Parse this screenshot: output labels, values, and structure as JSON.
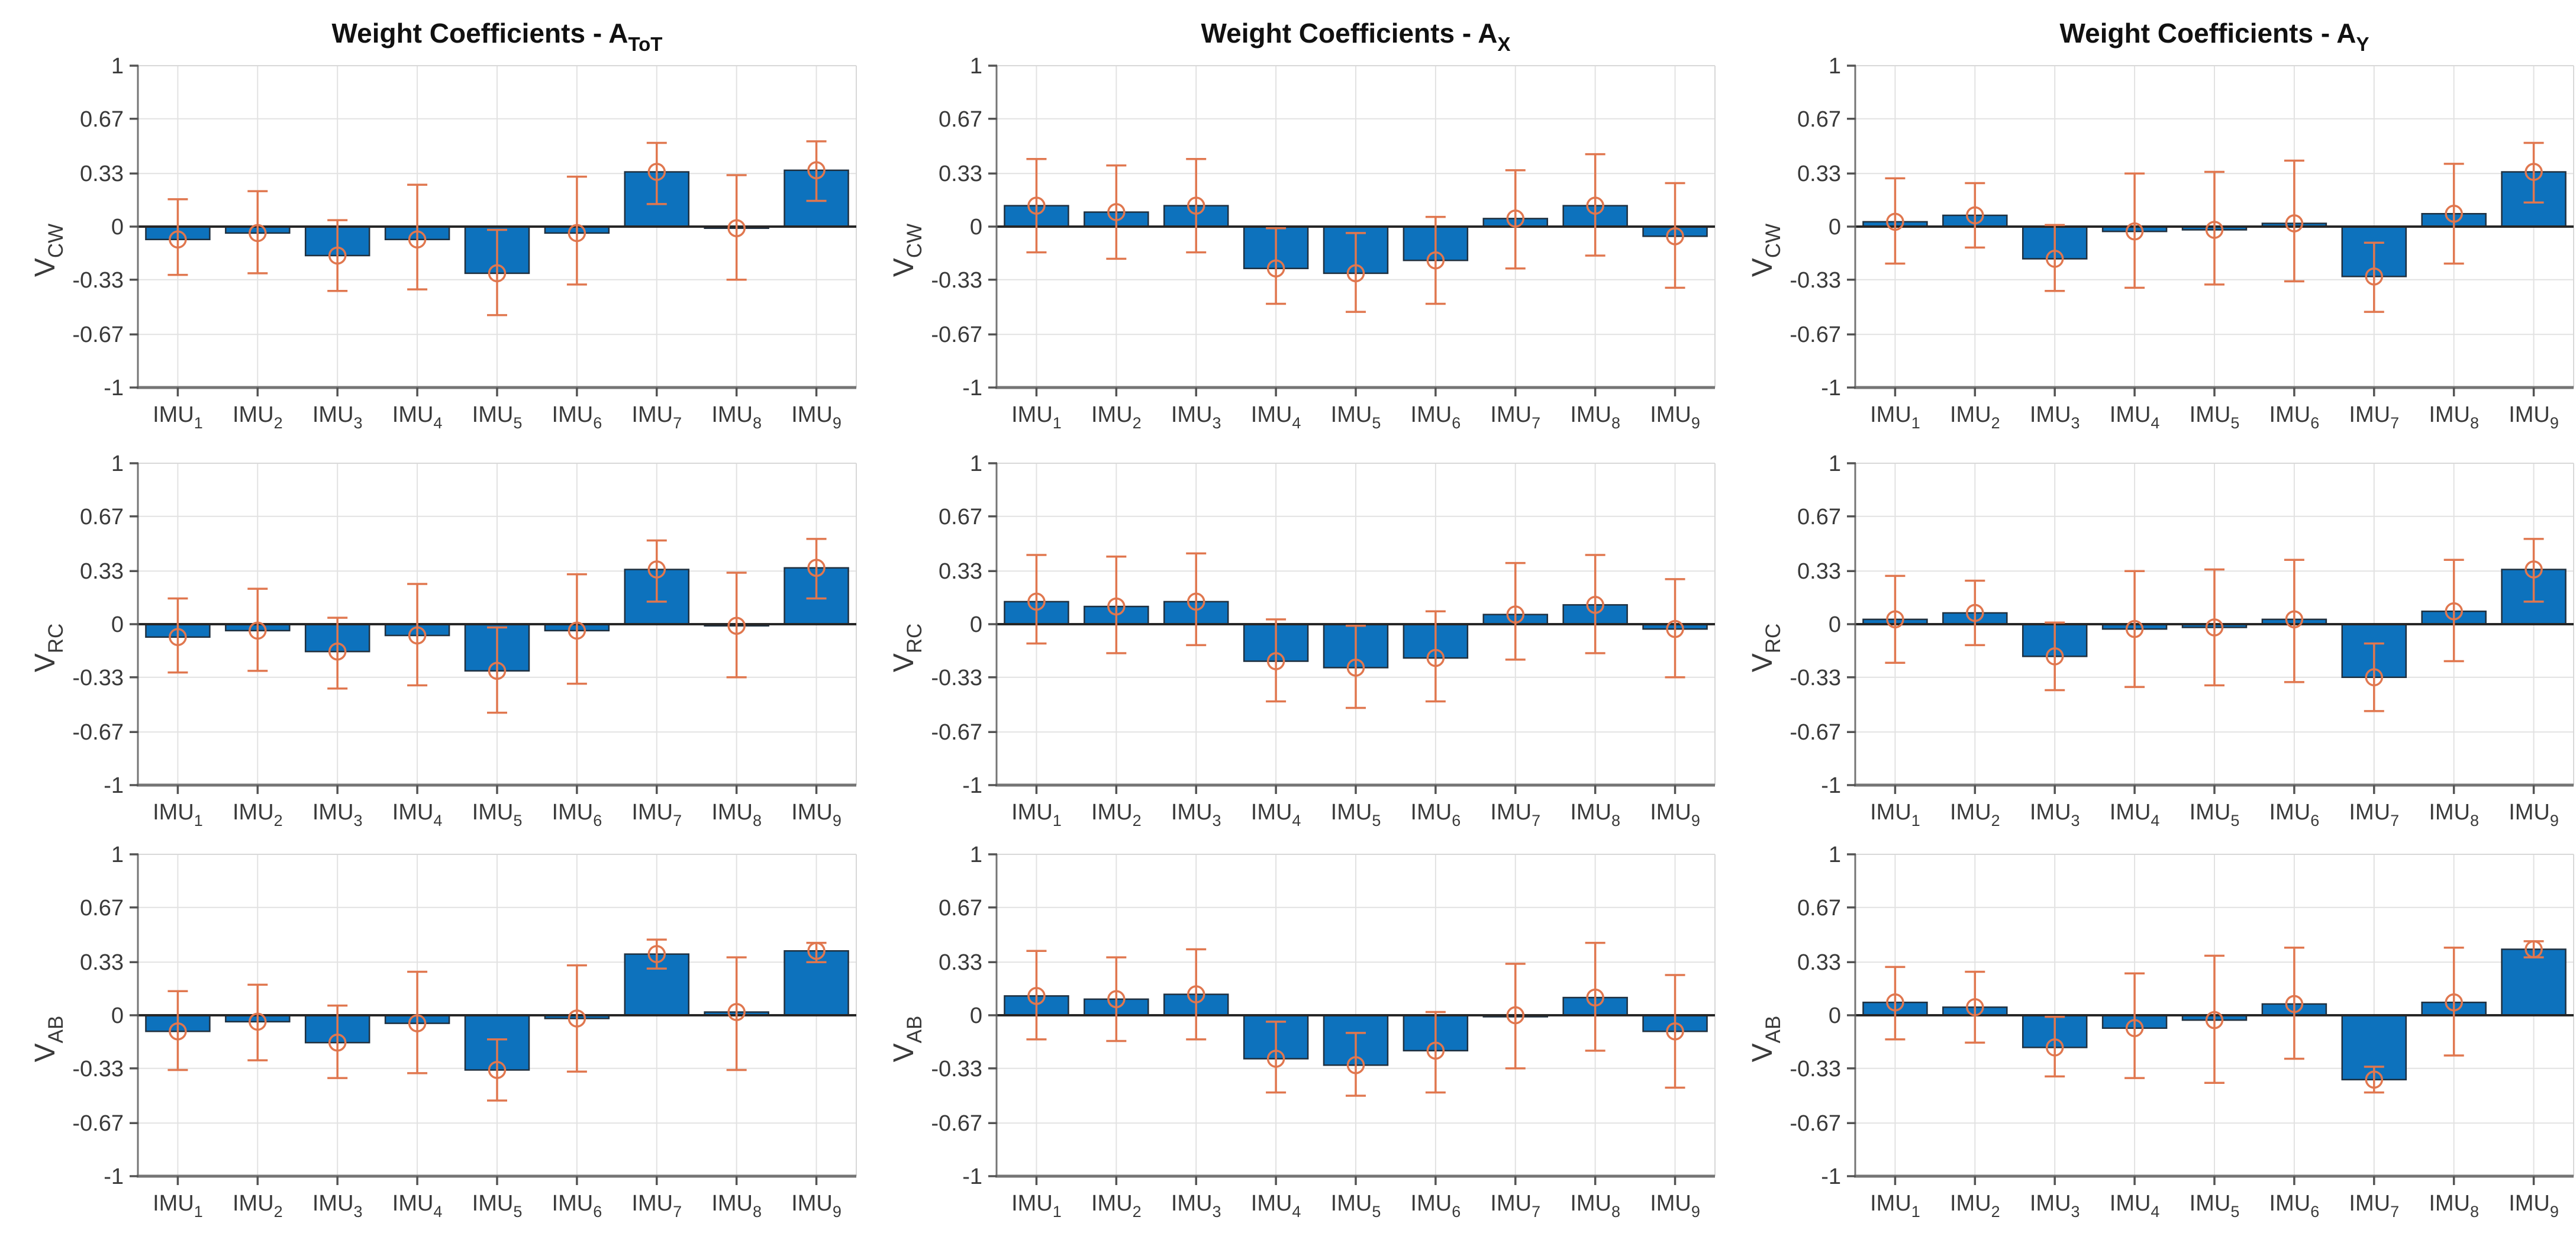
{
  "figure": {
    "column_titles": [
      "Weight Coefficients - A_ToT",
      "Weight Coefficients - A_X",
      "Weight Coefficients - A_Y"
    ],
    "row_ylabels": [
      "V_CW",
      "V_RC",
      "V_AB"
    ]
  },
  "axis": {
    "ylim": [
      -1,
      1
    ],
    "yticks": [
      1,
      0.67,
      0.33,
      0,
      -0.33,
      -0.67,
      -1
    ],
    "ytick_labels": [
      "1",
      "0.67",
      "0.33",
      "0",
      "-0.33",
      "-0.67",
      "-1"
    ],
    "categories": [
      "IMU_1",
      "IMU_2",
      "IMU_3",
      "IMU_4",
      "IMU_5",
      "IMU_6",
      "IMU_7",
      "IMU_8",
      "IMU_9"
    ],
    "grid": true
  },
  "colors": {
    "bar_fill": "#0d72bd",
    "bar_edge": "#20303f",
    "error_bar": "#e0774f",
    "grid_line": "#e2e2e2",
    "axis_line": "#757575",
    "zero_line": "#262626",
    "tick_text": "#3a3a3a",
    "title_text": "#111111",
    "background": "#ffffff"
  },
  "chart_data": [
    {
      "type": "bar",
      "id": "vcw-atot",
      "row": 0,
      "col": 0,
      "title": "Weight Coefficients - A_ToT",
      "ylabel": "V_CW",
      "values": [
        -0.08,
        -0.04,
        -0.18,
        -0.08,
        -0.29,
        -0.04,
        0.34,
        -0.01,
        0.35
      ],
      "err_low": [
        -0.3,
        -0.29,
        -0.4,
        -0.39,
        -0.55,
        -0.36,
        0.14,
        -0.33,
        0.16
      ],
      "err_high": [
        0.17,
        0.22,
        0.04,
        0.26,
        -0.02,
        0.31,
        0.52,
        0.32,
        0.53
      ]
    },
    {
      "type": "bar",
      "id": "vcw-ax",
      "row": 0,
      "col": 1,
      "title": "Weight Coefficients - A_X",
      "ylabel": "V_CW",
      "values": [
        0.13,
        0.09,
        0.13,
        -0.26,
        -0.29,
        -0.21,
        0.05,
        0.13,
        -0.06
      ],
      "err_low": [
        -0.16,
        -0.2,
        -0.16,
        -0.48,
        -0.53,
        -0.48,
        -0.26,
        -0.18,
        -0.38
      ],
      "err_high": [
        0.42,
        0.38,
        0.42,
        -0.01,
        -0.04,
        0.06,
        0.35,
        0.45,
        0.27
      ]
    },
    {
      "type": "bar",
      "id": "vcw-ay",
      "row": 0,
      "col": 2,
      "title": "Weight Coefficients - A_Y",
      "ylabel": "V_CW",
      "values": [
        0.03,
        0.07,
        -0.2,
        -0.03,
        -0.02,
        0.02,
        -0.31,
        0.08,
        0.34
      ],
      "err_low": [
        -0.23,
        -0.13,
        -0.4,
        -0.38,
        -0.36,
        -0.34,
        -0.53,
        -0.23,
        0.15
      ],
      "err_high": [
        0.3,
        0.27,
        0.01,
        0.33,
        0.34,
        0.41,
        -0.1,
        0.39,
        0.52
      ]
    },
    {
      "type": "bar",
      "id": "vrc-atot",
      "row": 1,
      "col": 0,
      "title": "Weight Coefficients - A_ToT",
      "ylabel": "V_RC",
      "values": [
        -0.08,
        -0.04,
        -0.17,
        -0.07,
        -0.29,
        -0.04,
        0.34,
        -0.01,
        0.35
      ],
      "err_low": [
        -0.3,
        -0.29,
        -0.4,
        -0.38,
        -0.55,
        -0.37,
        0.14,
        -0.33,
        0.16
      ],
      "err_high": [
        0.16,
        0.22,
        0.04,
        0.25,
        -0.02,
        0.31,
        0.52,
        0.32,
        0.53
      ]
    },
    {
      "type": "bar",
      "id": "vrc-ax",
      "row": 1,
      "col": 1,
      "title": "Weight Coefficients - A_X",
      "ylabel": "V_RC",
      "values": [
        0.14,
        0.11,
        0.14,
        -0.23,
        -0.27,
        -0.21,
        0.06,
        0.12,
        -0.03
      ],
      "err_low": [
        -0.12,
        -0.18,
        -0.13,
        -0.48,
        -0.52,
        -0.48,
        -0.22,
        -0.18,
        -0.33
      ],
      "err_high": [
        0.43,
        0.42,
        0.44,
        0.03,
        -0.01,
        0.08,
        0.38,
        0.43,
        0.28
      ]
    },
    {
      "type": "bar",
      "id": "vrc-ay",
      "row": 1,
      "col": 2,
      "title": "Weight Coefficients - A_Y",
      "ylabel": "V_RC",
      "values": [
        0.03,
        0.07,
        -0.2,
        -0.03,
        -0.02,
        0.03,
        -0.33,
        0.08,
        0.34
      ],
      "err_low": [
        -0.24,
        -0.13,
        -0.41,
        -0.39,
        -0.38,
        -0.36,
        -0.54,
        -0.23,
        0.14
      ],
      "err_high": [
        0.3,
        0.27,
        0.01,
        0.33,
        0.34,
        0.4,
        -0.12,
        0.4,
        0.53
      ]
    },
    {
      "type": "bar",
      "id": "vab-atot",
      "row": 2,
      "col": 0,
      "title": "Weight Coefficients - A_ToT",
      "ylabel": "V_AB",
      "values": [
        -0.1,
        -0.04,
        -0.17,
        -0.05,
        -0.34,
        -0.02,
        0.38,
        0.02,
        0.4
      ],
      "err_low": [
        -0.34,
        -0.28,
        -0.39,
        -0.36,
        -0.53,
        -0.35,
        0.29,
        -0.34,
        0.33
      ],
      "err_high": [
        0.15,
        0.19,
        0.06,
        0.27,
        -0.15,
        0.31,
        0.47,
        0.36,
        0.45
      ]
    },
    {
      "type": "bar",
      "id": "vab-ax",
      "row": 2,
      "col": 1,
      "title": "Weight Coefficients - A_X",
      "ylabel": "V_AB",
      "values": [
        0.12,
        0.1,
        0.13,
        -0.27,
        -0.31,
        -0.22,
        0.0,
        0.11,
        -0.1
      ],
      "err_low": [
        -0.15,
        -0.16,
        -0.15,
        -0.48,
        -0.5,
        -0.48,
        -0.33,
        -0.22,
        -0.45
      ],
      "err_high": [
        0.4,
        0.36,
        0.41,
        -0.04,
        -0.11,
        0.02,
        0.32,
        0.45,
        0.25
      ]
    },
    {
      "type": "bar",
      "id": "vab-ay",
      "row": 2,
      "col": 2,
      "title": "Weight Coefficients - A_Y",
      "ylabel": "V_AB",
      "values": [
        0.08,
        0.05,
        -0.2,
        -0.08,
        -0.03,
        0.07,
        -0.4,
        0.08,
        0.41
      ],
      "err_low": [
        -0.15,
        -0.17,
        -0.38,
        -0.39,
        -0.42,
        -0.27,
        -0.48,
        -0.25,
        0.36
      ],
      "err_high": [
        0.3,
        0.27,
        -0.01,
        0.26,
        0.37,
        0.42,
        -0.32,
        0.42,
        0.46
      ]
    }
  ]
}
